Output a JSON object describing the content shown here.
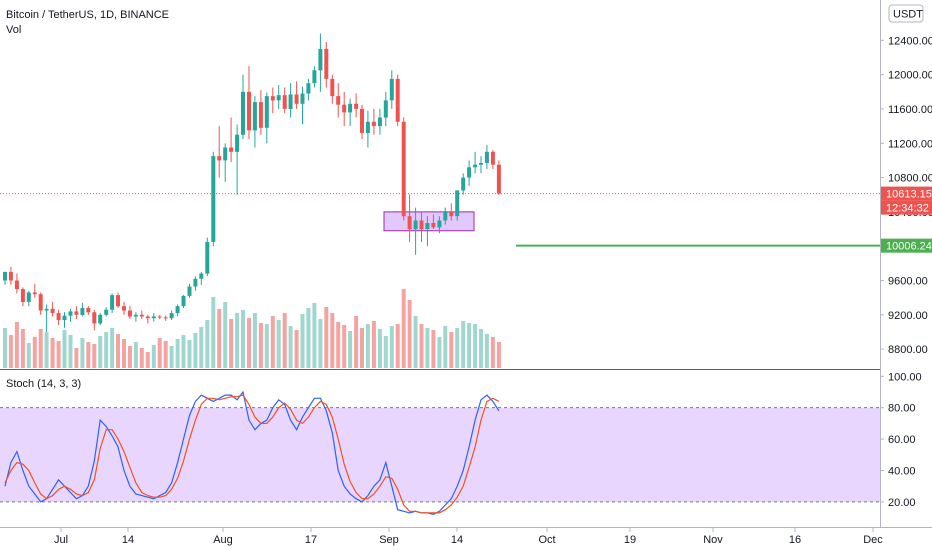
{
  "header": {
    "symbol": "Bitcoin / TetherUS, 1D, BINANCE",
    "volume_label": "Vol",
    "currency_badge": "USDT",
    "stoch_label": "Stoch (14, 3, 3)"
  },
  "price_tags": {
    "last_price": "10613.15",
    "countdown": "12:34:32",
    "level": "10006.24"
  },
  "colors": {
    "up": "#26a69a",
    "down": "#ef5350",
    "vol_up": "#9fd7cf",
    "vol_down": "#f5a3a1",
    "k_line": "#2962ff",
    "d_line": "#f4511e",
    "stoch_band": "#e1c8fd",
    "level_line": "#4caf50",
    "box_fill": "#e1c8fd",
    "box_stroke": "#9c27b0"
  },
  "chart_data": [
    {
      "type": "candlestick",
      "title": "Bitcoin / TetherUS, 1D, BINANCE",
      "y_axis_ticks": [
        8800,
        9200,
        9600,
        10000,
        10400,
        10800,
        11200,
        11600,
        12000,
        12400
      ],
      "ylim": [
        8580,
        12870
      ],
      "x_axis_labels": [
        "Jul",
        "14",
        "Aug",
        "17",
        "Sep",
        "14",
        "Oct",
        "19",
        "Nov",
        "16",
        "Dec"
      ],
      "horizontal_level": 10006.24,
      "last_price": 10613.15,
      "ohlc": [
        [
          9600,
          9700,
          9550,
          9700
        ],
        [
          9700,
          9760,
          9550,
          9600
        ],
        [
          9600,
          9680,
          9450,
          9500
        ],
        [
          9500,
          9520,
          9300,
          9350
        ],
        [
          9350,
          9480,
          9300,
          9460
        ],
        [
          9460,
          9560,
          9400,
          9440
        ],
        [
          9440,
          9460,
          9200,
          9250
        ],
        [
          9250,
          9320,
          9000,
          9270
        ],
        [
          9270,
          9350,
          9180,
          9220
        ],
        [
          9220,
          9260,
          9080,
          9140
        ],
        [
          9140,
          9230,
          9050,
          9190
        ],
        [
          9190,
          9270,
          9120,
          9240
        ],
        [
          9240,
          9300,
          9150,
          9200
        ],
        [
          9200,
          9340,
          9180,
          9280
        ],
        [
          9280,
          9300,
          9200,
          9230
        ],
        [
          9230,
          9260,
          9020,
          9100
        ],
        [
          9100,
          9220,
          9080,
          9200
        ],
        [
          9200,
          9290,
          9180,
          9260
        ],
        [
          9260,
          9450,
          9220,
          9430
        ],
        [
          9430,
          9460,
          9280,
          9300
        ],
        [
          9300,
          9350,
          9200,
          9250
        ],
        [
          9250,
          9300,
          9150,
          9180
        ],
        [
          9180,
          9230,
          9120,
          9200
        ],
        [
          9200,
          9250,
          9150,
          9180
        ],
        [
          9180,
          9200,
          9100,
          9160
        ],
        [
          9160,
          9220,
          9120,
          9180
        ],
        [
          9180,
          9200,
          9150,
          9170
        ],
        [
          9170,
          9190,
          9130,
          9160
        ],
        [
          9160,
          9250,
          9140,
          9220
        ],
        [
          9220,
          9320,
          9180,
          9300
        ],
        [
          9300,
          9430,
          9280,
          9420
        ],
        [
          9420,
          9560,
          9400,
          9530
        ],
        [
          9530,
          9650,
          9480,
          9620
        ],
        [
          9620,
          9700,
          9550,
          9680
        ],
        [
          9680,
          10100,
          9650,
          10050
        ],
        [
          10050,
          11100,
          10000,
          11050
        ],
        [
          11050,
          11400,
          10800,
          11000
        ],
        [
          11000,
          11200,
          10750,
          11150
        ],
        [
          11150,
          11500,
          10980,
          11100
        ],
        [
          11100,
          11420,
          10600,
          11300
        ],
        [
          11300,
          12000,
          11250,
          11800
        ],
        [
          11800,
          12100,
          11250,
          11350
        ],
        [
          11350,
          11750,
          11150,
          11680
        ],
        [
          11680,
          11820,
          11300,
          11380
        ],
        [
          11380,
          11790,
          11200,
          11750
        ],
        [
          11750,
          11850,
          11550,
          11700
        ],
        [
          11700,
          11880,
          11600,
          11760
        ],
        [
          11760,
          11850,
          11550,
          11600
        ],
        [
          11600,
          11900,
          11500,
          11770
        ],
        [
          11770,
          11920,
          11600,
          11660
        ],
        [
          11660,
          11860,
          11420,
          11780
        ],
        [
          11780,
          11950,
          11700,
          11900
        ],
        [
          11900,
          12100,
          11850,
          12050
        ],
        [
          12050,
          12480,
          11800,
          12300
        ],
        [
          12300,
          12380,
          11850,
          11950
        ],
        [
          11950,
          12000,
          11660,
          11750
        ],
        [
          11750,
          11900,
          11500,
          11650
        ],
        [
          11650,
          11800,
          11400,
          11560
        ],
        [
          11560,
          11720,
          11400,
          11660
        ],
        [
          11660,
          11780,
          11500,
          11600
        ],
        [
          11600,
          11650,
          11250,
          11320
        ],
        [
          11320,
          11580,
          11150,
          11450
        ],
        [
          11450,
          11600,
          11300,
          11400
        ],
        [
          11400,
          11600,
          11300,
          11500
        ],
        [
          11500,
          11800,
          11400,
          11700
        ],
        [
          11700,
          12050,
          11600,
          11950
        ],
        [
          11950,
          12000,
          11400,
          11450
        ],
        [
          11450,
          11500,
          10300,
          10350
        ],
        [
          10350,
          10600,
          10050,
          10200
        ],
        [
          10200,
          10450,
          9900,
          10300
        ],
        [
          10300,
          10400,
          10050,
          10200
        ],
        [
          10200,
          10350,
          10000,
          10270
        ],
        [
          10270,
          10370,
          10200,
          10220
        ],
        [
          10220,
          10350,
          10150,
          10300
        ],
        [
          10300,
          10450,
          10250,
          10400
        ],
        [
          10400,
          10500,
          10300,
          10350
        ],
        [
          10350,
          10650,
          10300,
          10650
        ],
        [
          10650,
          10850,
          10600,
          10800
        ],
        [
          10800,
          11000,
          10700,
          10920
        ],
        [
          10920,
          11100,
          10850,
          10950
        ],
        [
          10950,
          11050,
          10850,
          10970
        ],
        [
          10970,
          11180,
          10900,
          11100
        ],
        [
          11100,
          11120,
          10900,
          10950
        ],
        [
          10950,
          11000,
          10600,
          10613.15
        ]
      ],
      "volume_relative": [
        0.4,
        0.33,
        0.46,
        0.39,
        0.25,
        0.31,
        0.39,
        0.36,
        0.3,
        0.27,
        0.38,
        0.33,
        0.2,
        0.3,
        0.26,
        0.24,
        0.32,
        0.36,
        0.4,
        0.34,
        0.29,
        0.22,
        0.26,
        0.2,
        0.16,
        0.23,
        0.3,
        0.27,
        0.22,
        0.29,
        0.33,
        0.28,
        0.35,
        0.41,
        0.48,
        0.71,
        0.59,
        0.66,
        0.49,
        0.55,
        0.58,
        0.5,
        0.55,
        0.45,
        0.44,
        0.52,
        0.48,
        0.55,
        0.42,
        0.38,
        0.54,
        0.6,
        0.65,
        0.49,
        0.61,
        0.55,
        0.46,
        0.43,
        0.37,
        0.52,
        0.4,
        0.44,
        0.47,
        0.39,
        0.32,
        0.42,
        0.44,
        0.79,
        0.68,
        0.52,
        0.44,
        0.4,
        0.38,
        0.31,
        0.42,
        0.36,
        0.4,
        0.47,
        0.45,
        0.44,
        0.39,
        0.34,
        0.31,
        0.26
      ],
      "volume_up": [
        true,
        false,
        false,
        false,
        true,
        false,
        false,
        true,
        false,
        false,
        true,
        true,
        false,
        true,
        false,
        false,
        true,
        true,
        true,
        false,
        false,
        false,
        true,
        false,
        false,
        true,
        false,
        false,
        true,
        true,
        true,
        true,
        true,
        true,
        true,
        true,
        false,
        true,
        false,
        true,
        true,
        false,
        true,
        false,
        true,
        false,
        true,
        false,
        true,
        false,
        true,
        true,
        true,
        true,
        false,
        false,
        false,
        false,
        true,
        false,
        false,
        true,
        false,
        true,
        true,
        true,
        false,
        false,
        false,
        true,
        false,
        true,
        false,
        true,
        true,
        false,
        true,
        true,
        true,
        true,
        true,
        true,
        false,
        false
      ]
    },
    {
      "type": "line",
      "title": "Stoch (14, 3, 3)",
      "y_axis_ticks": [
        20,
        40,
        60,
        80,
        100
      ],
      "ylim": [
        4,
        104
      ],
      "band": [
        20,
        80
      ],
      "series": [
        {
          "name": "%K",
          "values": [
            30,
            45,
            52,
            40,
            30,
            25,
            20,
            22,
            28,
            34,
            30,
            26,
            22,
            24,
            30,
            46,
            72,
            68,
            62,
            55,
            40,
            30,
            25,
            24,
            23,
            22,
            24,
            26,
            32,
            45,
            60,
            75,
            84,
            88,
            86,
            84,
            86,
            88,
            88,
            85,
            90,
            72,
            66,
            70,
            72,
            80,
            85,
            82,
            72,
            66,
            74,
            80,
            86,
            86,
            78,
            64,
            40,
            30,
            25,
            22,
            20,
            24,
            30,
            34,
            45,
            30,
            15,
            14,
            13,
            14,
            13,
            13,
            12,
            14,
            18,
            22,
            30,
            40,
            55,
            72,
            85,
            88,
            84,
            78
          ]
        },
        {
          "name": "%D",
          "values": [
            32,
            40,
            45,
            44,
            40,
            32,
            25,
            22,
            24,
            28,
            30,
            28,
            25,
            24,
            26,
            34,
            54,
            66,
            66,
            60,
            52,
            42,
            32,
            26,
            24,
            23,
            23,
            24,
            28,
            35,
            46,
            60,
            72,
            82,
            86,
            86,
            85,
            86,
            87,
            87,
            88,
            82,
            74,
            70,
            70,
            74,
            80,
            83,
            79,
            72,
            70,
            74,
            80,
            84,
            82,
            74,
            60,
            44,
            33,
            26,
            22,
            22,
            25,
            30,
            36,
            35,
            28,
            18,
            14,
            14,
            13,
            13,
            13,
            13,
            15,
            18,
            23,
            30,
            42,
            55,
            72,
            84,
            86,
            84
          ]
        }
      ]
    }
  ]
}
